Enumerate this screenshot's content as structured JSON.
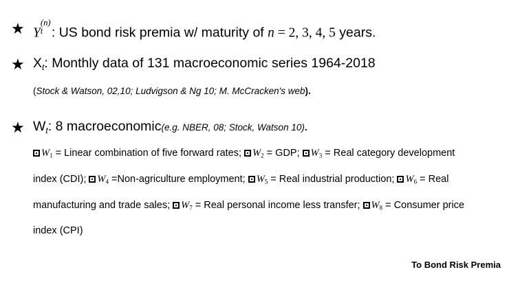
{
  "bullets": [
    {
      "star": "★",
      "symbol": "Y",
      "subscript": "t",
      "superscript": "(n)",
      "text": ": US bond risk premia w/ maturity of ",
      "math_var": "n",
      "math_eq": " = 2, 3, 4, 5",
      "tail": " years."
    },
    {
      "star": "★",
      "symbol": "X",
      "subscript": "t",
      "text": ": Monthly data of 131 macroeconomic series 1964-2018",
      "note_open": "(",
      "note": "Stock & Watson, 02,10; Ludvigson & Ng 10; M. McCracken's web",
      "note_close": ").",
      "note_close_style": "bold"
    },
    {
      "star": "★",
      "symbol": "W",
      "subscript": "t",
      "text": ": 8 macroeconomic",
      "inline_note": "(e.g. NBER, 08; Stock, Watson 10)",
      "tail": "."
    }
  ],
  "w_items": [
    {
      "var": "W",
      "sub": "1",
      "desc": " = Linear combination of five forward rates;"
    },
    {
      "var": "W",
      "sub": "2",
      "desc": " = GDP;"
    },
    {
      "var": "W",
      "sub": "3",
      "desc": " = Real category development index (CDI);"
    },
    {
      "var": "W",
      "sub": "4",
      "desc": " =Non-agriculture employment;"
    },
    {
      "var": "W",
      "sub": "5",
      "desc": " = Real industrial production;"
    },
    {
      "var": "W",
      "sub": "6",
      "desc": " = Real manufacturing and trade sales;"
    },
    {
      "var": "W",
      "sub": "7",
      "desc": " = Real personal income less transfer;"
    },
    {
      "var": "W",
      "sub": "8",
      "desc": " = Consumer price index (CPI)"
    }
  ],
  "lines": {
    "l1_a": " = Linear combination of five forward rates; ",
    "l1_b": " = GDP; ",
    "l1_c": " = Real category development",
    "l2_a": "index (CDI); ",
    "l2_b": " =Non-agriculture employment; ",
    "l2_c": " = Real industrial production; ",
    "l2_d": " = Real",
    "l3_a": "manufacturing and trade sales; ",
    "l3_b": " = Real personal income less transfer; ",
    "l3_c": " = Consumer price",
    "l4_a": "index (CPI)"
  },
  "footer": "To Bond Risk Premia"
}
